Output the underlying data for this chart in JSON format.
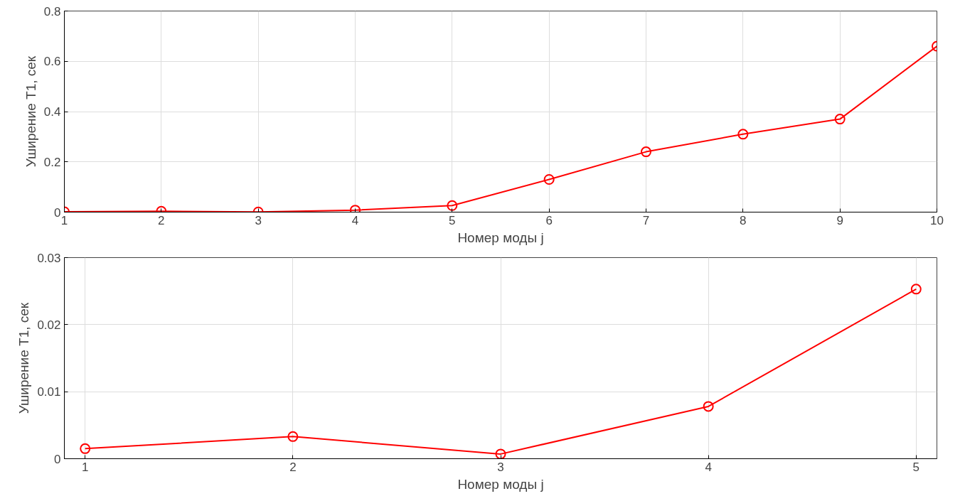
{
  "chart_data": [
    {
      "type": "line",
      "xlabel": "Номер моды j",
      "ylabel": "Уширение Т1, сек",
      "x": [
        1,
        2,
        3,
        4,
        5,
        6,
        7,
        8,
        9,
        10
      ],
      "series": [
        {
          "color": "#ff0000",
          "values": [
            0.0015,
            0.0034,
            0.0008,
            0.008,
            0.026,
            0.13,
            0.24,
            0.31,
            0.37,
            0.66
          ]
        }
      ],
      "xlim": [
        1,
        10
      ],
      "xticks": [
        1,
        2,
        3,
        4,
        5,
        6,
        7,
        8,
        9,
        10
      ],
      "ylim": [
        0,
        0.8
      ],
      "yticks": [
        0,
        0.2,
        0.4,
        0.6,
        0.8
      ],
      "grid": true,
      "marker": "circle",
      "line_style": "solid"
    },
    {
      "type": "line",
      "xlabel": "Номер моды j",
      "ylabel": "Уширение Т1, сек",
      "x": [
        1,
        2,
        3,
        4,
        5
      ],
      "series": [
        {
          "color": "#ff0000",
          "values": [
            0.0015,
            0.0033,
            0.0007,
            0.0078,
            0.0253
          ]
        }
      ],
      "xlim": [
        0.9,
        5.1
      ],
      "xticks": [
        1,
        2,
        3,
        4,
        5
      ],
      "ylim": [
        0,
        0.03
      ],
      "yticks": [
        0,
        0.01,
        0.02,
        0.03
      ],
      "grid": true,
      "marker": "circle",
      "line_style": "solid"
    }
  ]
}
